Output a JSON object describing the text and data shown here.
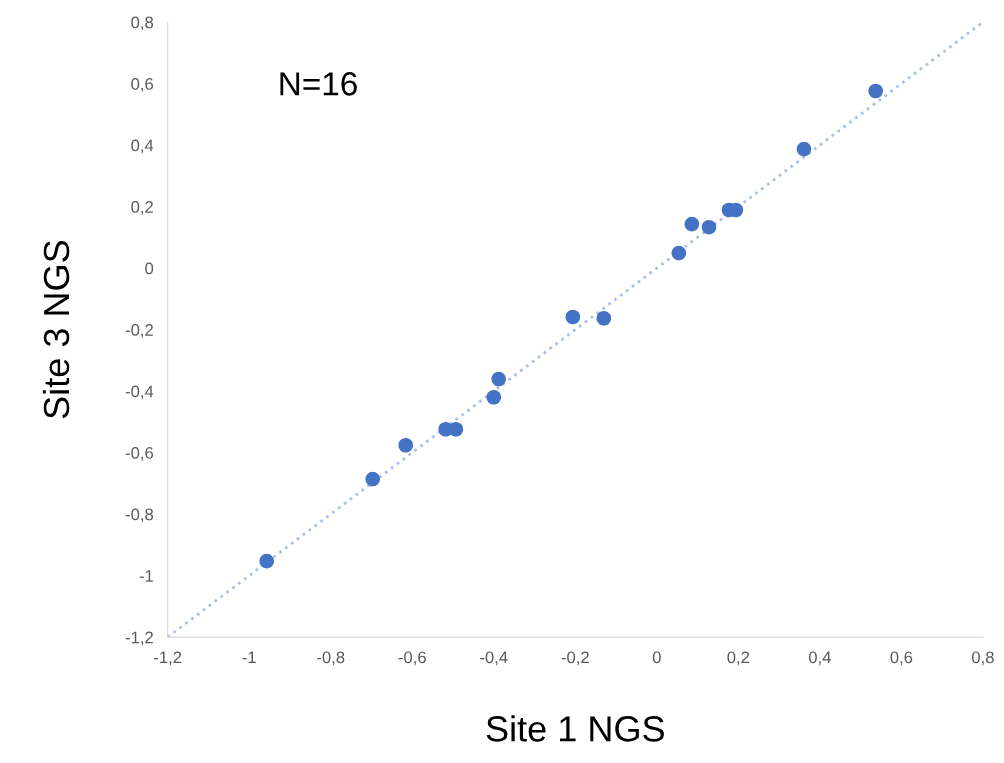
{
  "chart_data": {
    "type": "scatter",
    "xlabel": "Site 1 NGS",
    "ylabel": "Site 3 NGS",
    "annotations": [
      "N=16"
    ],
    "series": [
      {
        "color": "#4472c4",
        "marker": "circle",
        "x": [
          -0.957,
          -0.697,
          -0.616,
          -0.518,
          -0.493,
          -0.4,
          -0.388,
          -0.206,
          -0.13,
          0.054,
          0.086,
          0.128,
          0.177,
          0.194,
          0.361,
          0.537
        ],
        "values": [
          -0.953,
          -0.686,
          -0.576,
          -0.524,
          -0.524,
          -0.42,
          -0.361,
          -0.159,
          -0.163,
          0.049,
          0.143,
          0.133,
          0.189,
          0.189,
          0.387,
          0.576
        ]
      },
      {
        "type": "line",
        "color": "#a9c0e8",
        "line_style": "dotted",
        "x": [
          -1.2,
          0.8
        ],
        "values": [
          -1.2,
          0.8
        ]
      }
    ],
    "xlim": [
      -1.2,
      0.8
    ],
    "ylim": [
      -1.2,
      0.8
    ],
    "xticks": [
      {
        "value": -1.2,
        "label": "-1,2"
      },
      {
        "value": -1,
        "label": "-1"
      },
      {
        "value": -0.8,
        "label": "-0,8"
      },
      {
        "value": -0.6,
        "label": "-0,6"
      },
      {
        "value": -0.4,
        "label": "-0,4"
      },
      {
        "value": -0.2,
        "label": "-0,2"
      },
      0,
      {
        "value": 0.2,
        "label": "0,2"
      },
      {
        "value": 0.4,
        "label": "0,4"
      },
      {
        "value": 0.6,
        "label": "0,6"
      },
      {
        "value": 0.8,
        "label": "0,8"
      }
    ],
    "yticks": [
      {
        "value": -1.2,
        "label": "-1,2"
      },
      {
        "value": -1,
        "label": "-1"
      },
      {
        "value": -0.8,
        "label": "-0,8"
      },
      {
        "value": -0.6,
        "label": "-0,6"
      },
      {
        "value": -0.4,
        "label": "-0,4"
      },
      {
        "value": -0.2,
        "label": "-0,2"
      },
      0,
      {
        "value": 0.2,
        "label": "0,2"
      },
      {
        "value": 0.4,
        "label": "0,4"
      },
      {
        "value": 0.6,
        "label": "0,6"
      },
      {
        "value": 0.8,
        "label": "0,8"
      }
    ],
    "grid": false
  }
}
